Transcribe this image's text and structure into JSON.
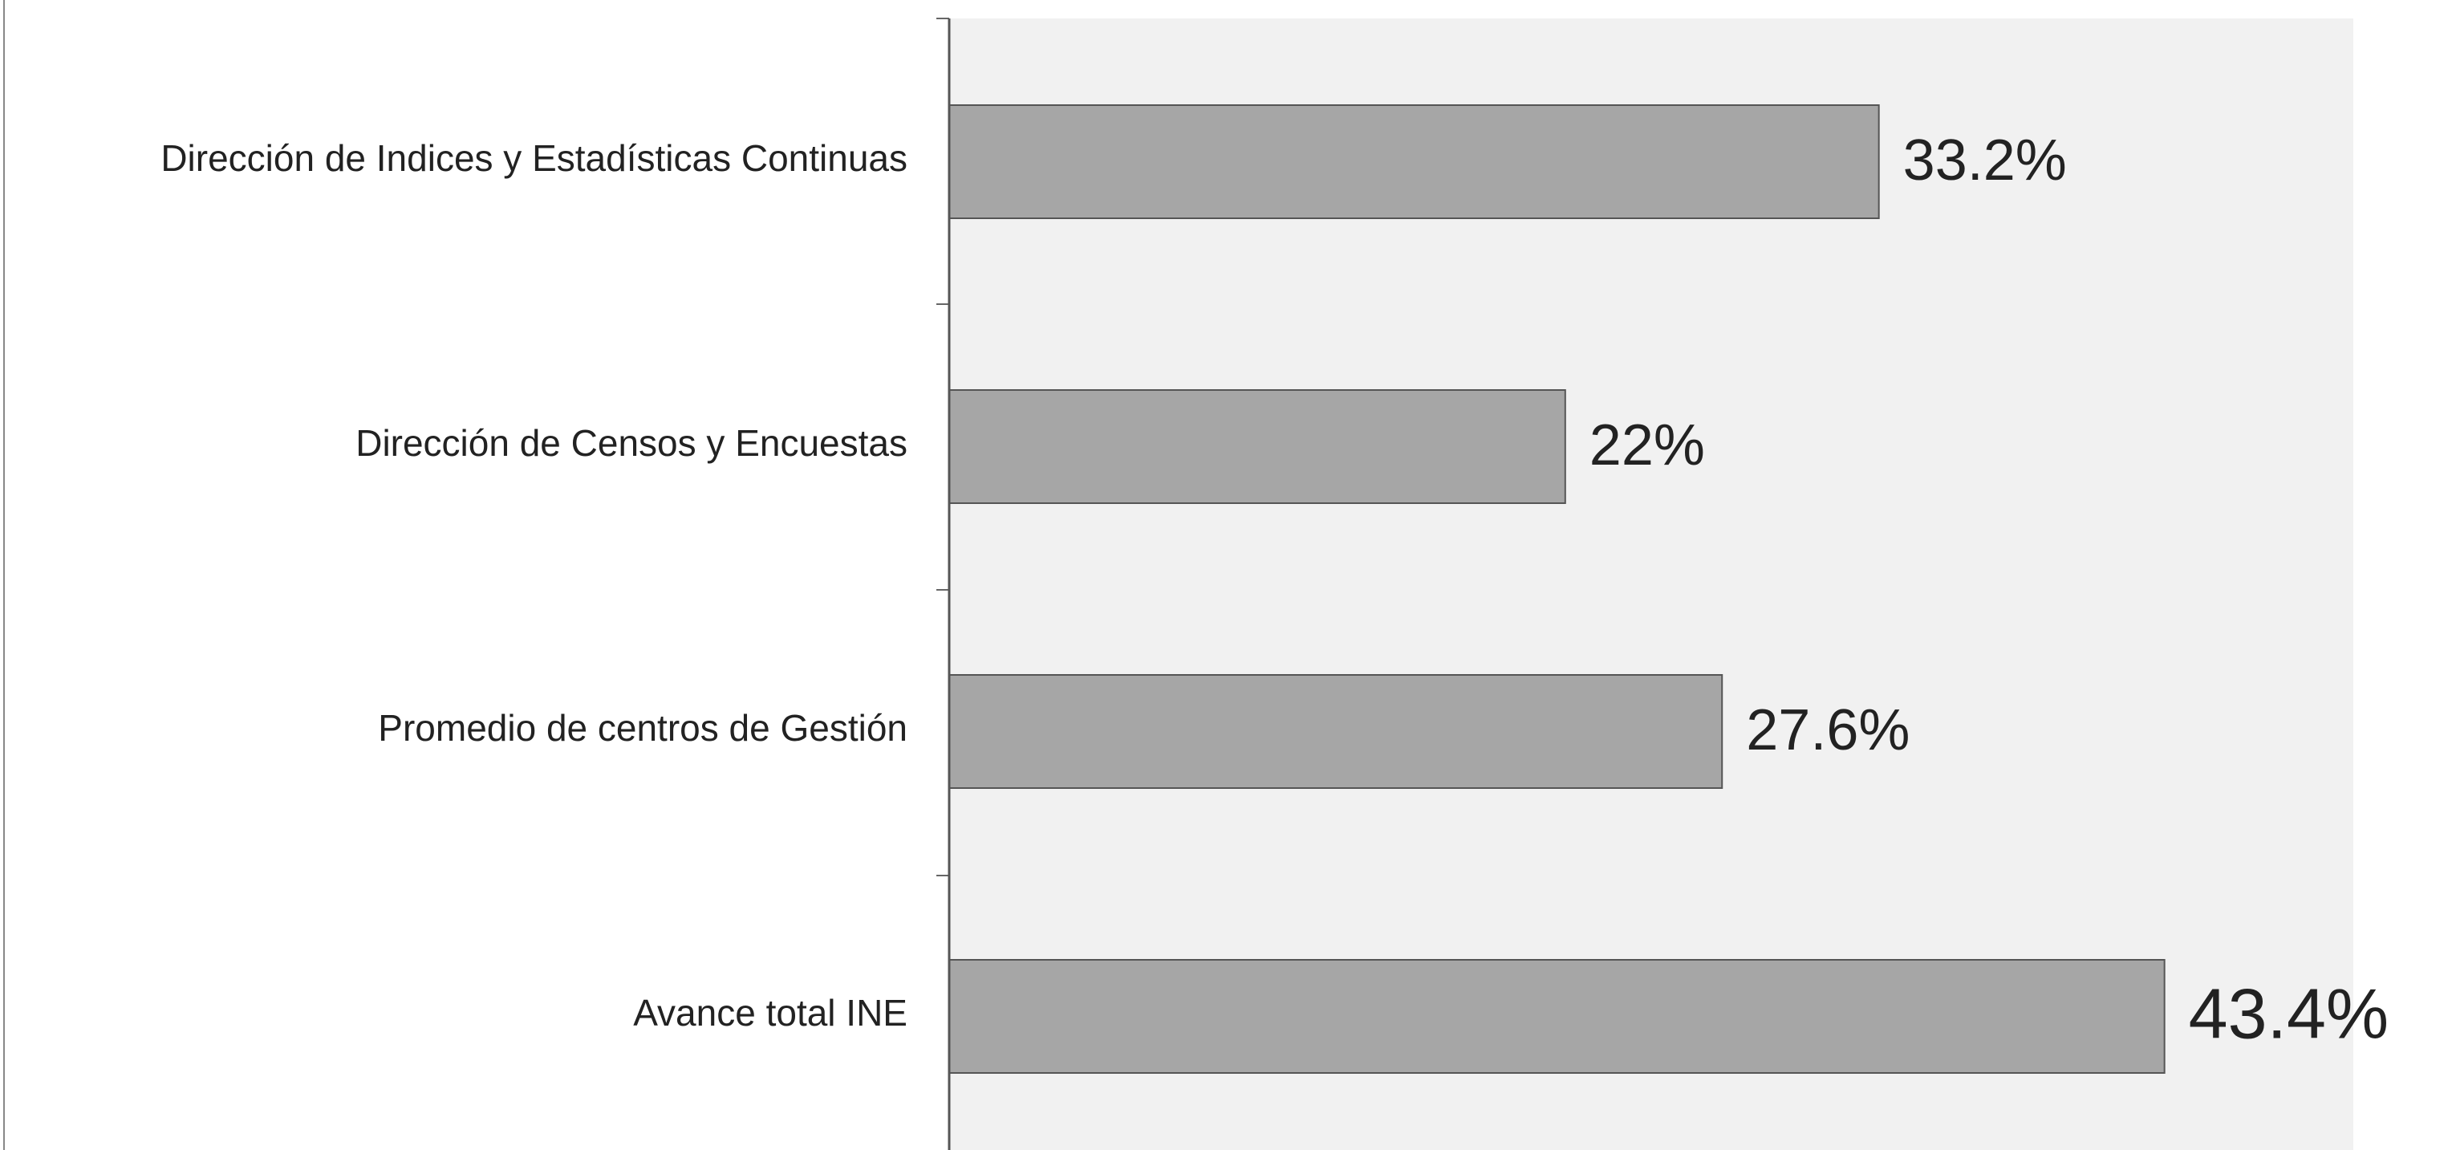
{
  "chart_data": {
    "type": "bar",
    "orientation": "horizontal",
    "categories": [
      "Dirección de Indices y Estadísticas Continuas",
      "Dirección de Censos y Encuestas",
      "Promedio de centros de Gestión",
      "Avance total INE"
    ],
    "values": [
      33.2,
      22,
      27.6,
      43.4
    ],
    "value_labels": [
      "33.2%",
      "22%",
      "27.6%",
      "43.4%"
    ],
    "color": "#a6a6a6"
  }
}
